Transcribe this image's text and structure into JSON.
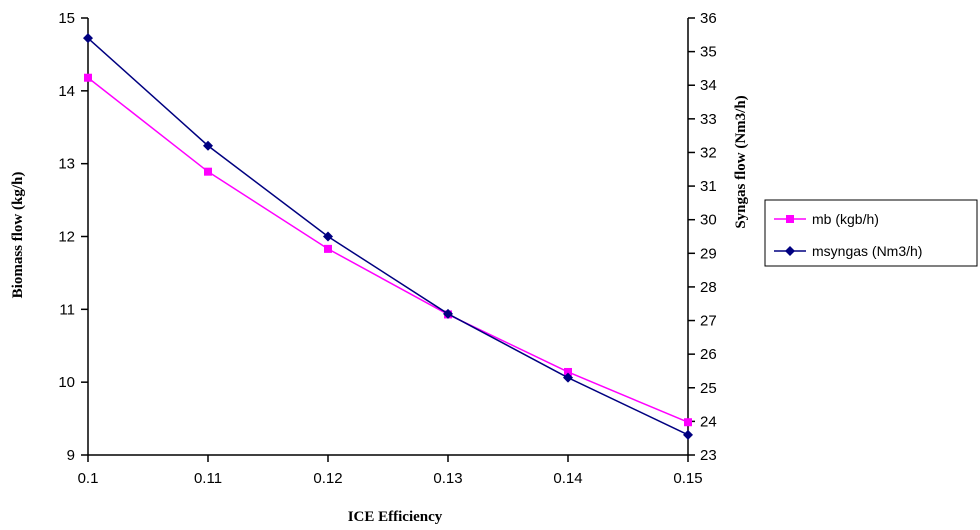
{
  "chart_data": {
    "type": "line",
    "xlabel": "ICE  Efficiency",
    "ylabel_left": "Biomass flow (kg/h)",
    "ylabel_right": "Syngas flow (Nm3/h)",
    "x": [
      0.1,
      0.11,
      0.12,
      0.13,
      0.14,
      0.15
    ],
    "x_ticks": [
      "0.1",
      "0.11",
      "0.12",
      "0.13",
      "0.14",
      "0.15"
    ],
    "xlim": [
      0.1,
      0.15
    ],
    "ylim_left": [
      9,
      15
    ],
    "y_ticks_left": [
      "9",
      "10",
      "11",
      "12",
      "13",
      "14",
      "15"
    ],
    "ylim_right": [
      23,
      36
    ],
    "y_ticks_right": [
      "23",
      "24",
      "25",
      "26",
      "27",
      "28",
      "29",
      "30",
      "31",
      "32",
      "33",
      "34",
      "35",
      "36"
    ],
    "grid": false,
    "legend_position": "right",
    "series": [
      {
        "name": "mb (kgb/h)",
        "axis": "left",
        "color": "#ff00ff",
        "marker": "square",
        "values": [
          14.18,
          12.89,
          11.83,
          10.93,
          10.14,
          9.45
        ]
      },
      {
        "name": "msyngas (Nm3/h)",
        "axis": "right",
        "color": "#000080",
        "marker": "diamond",
        "values": [
          35.4,
          32.2,
          29.5,
          27.2,
          25.3,
          23.6
        ]
      }
    ]
  }
}
